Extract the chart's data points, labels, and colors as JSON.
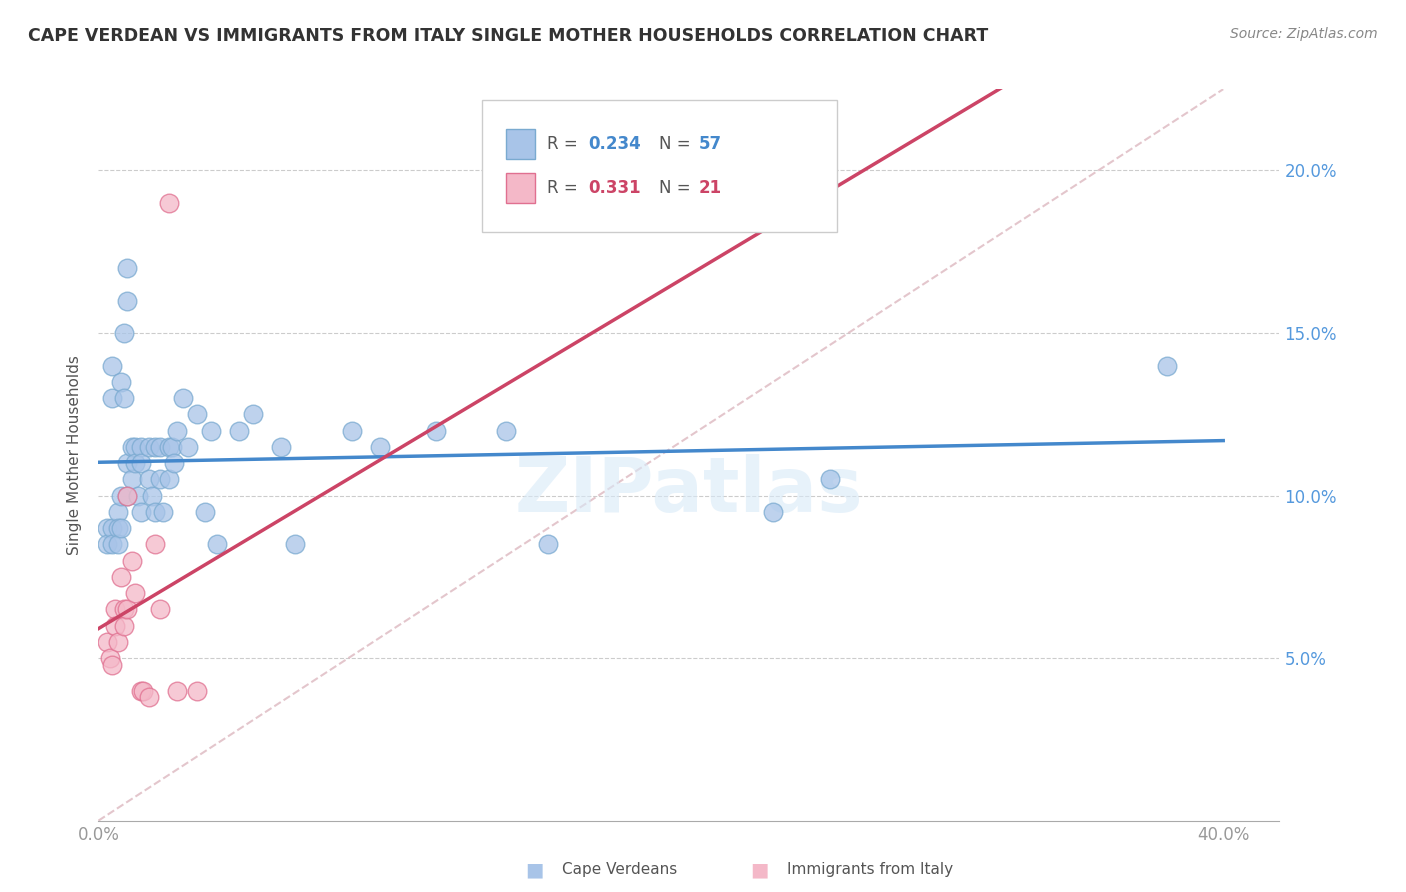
{
  "title": "CAPE VERDEAN VS IMMIGRANTS FROM ITALY SINGLE MOTHER HOUSEHOLDS CORRELATION CHART",
  "source": "Source: ZipAtlas.com",
  "ylabel": "Single Mother Households",
  "ytick_values": [
    0.05,
    0.1,
    0.15,
    0.2
  ],
  "ytick_labels": [
    "5.0%",
    "10.0%",
    "15.0%",
    "20.0%"
  ],
  "xtick_values": [
    0.0,
    0.1,
    0.2,
    0.3,
    0.4
  ],
  "xtick_labels": [
    "0.0%",
    "",
    "",
    "",
    "40.0%"
  ],
  "xlim": [
    0.0,
    0.42
  ],
  "ylim": [
    0.0,
    0.225
  ],
  "blue_scatter_color": "#a8c4e8",
  "blue_edge_color": "#7aaad0",
  "pink_scatter_color": "#f4b8c8",
  "pink_edge_color": "#e07090",
  "blue_line_color": "#4488cc",
  "pink_line_color": "#cc4466",
  "diag_line_color": "#ddb8c0",
  "watermark_color": "#d8eaf8",
  "R_blue": "0.234",
  "N_blue": "57",
  "R_pink": "0.331",
  "N_pink": "21",
  "cape_verdean_x": [
    0.003,
    0.003,
    0.005,
    0.005,
    0.005,
    0.005,
    0.007,
    0.007,
    0.007,
    0.008,
    0.008,
    0.008,
    0.009,
    0.009,
    0.01,
    0.01,
    0.01,
    0.01,
    0.012,
    0.012,
    0.013,
    0.013,
    0.014,
    0.015,
    0.015,
    0.015,
    0.018,
    0.018,
    0.019,
    0.02,
    0.02,
    0.022,
    0.022,
    0.023,
    0.025,
    0.025,
    0.026,
    0.027,
    0.028,
    0.03,
    0.032,
    0.035,
    0.038,
    0.04,
    0.042,
    0.05,
    0.055,
    0.065,
    0.07,
    0.09,
    0.1,
    0.12,
    0.145,
    0.16,
    0.24,
    0.26,
    0.38
  ],
  "cape_verdean_y": [
    0.09,
    0.085,
    0.14,
    0.13,
    0.09,
    0.085,
    0.095,
    0.09,
    0.085,
    0.135,
    0.1,
    0.09,
    0.15,
    0.13,
    0.17,
    0.16,
    0.11,
    0.1,
    0.115,
    0.105,
    0.115,
    0.11,
    0.1,
    0.115,
    0.11,
    0.095,
    0.115,
    0.105,
    0.1,
    0.115,
    0.095,
    0.115,
    0.105,
    0.095,
    0.115,
    0.105,
    0.115,
    0.11,
    0.12,
    0.13,
    0.115,
    0.125,
    0.095,
    0.12,
    0.085,
    0.12,
    0.125,
    0.115,
    0.085,
    0.12,
    0.115,
    0.12,
    0.12,
    0.085,
    0.095,
    0.105,
    0.14
  ],
  "italy_x": [
    0.003,
    0.004,
    0.005,
    0.006,
    0.006,
    0.007,
    0.008,
    0.009,
    0.009,
    0.01,
    0.01,
    0.012,
    0.013,
    0.015,
    0.016,
    0.018,
    0.02,
    0.022,
    0.025,
    0.028,
    0.035
  ],
  "italy_y": [
    0.055,
    0.05,
    0.048,
    0.065,
    0.06,
    0.055,
    0.075,
    0.065,
    0.06,
    0.1,
    0.065,
    0.08,
    0.07,
    0.04,
    0.04,
    0.038,
    0.085,
    0.065,
    0.19,
    0.04,
    0.04
  ]
}
